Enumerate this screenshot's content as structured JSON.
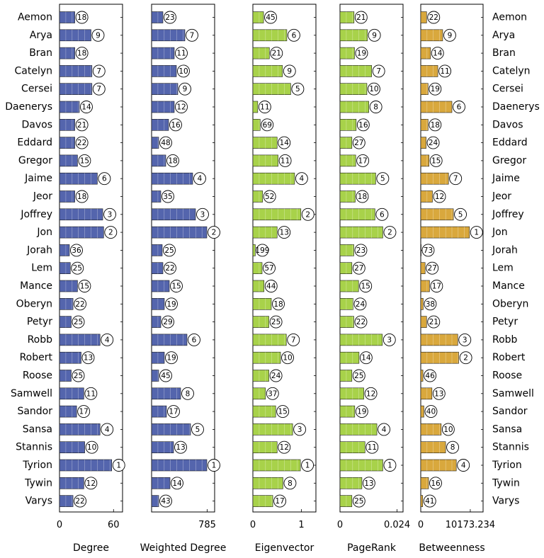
{
  "chart_data": {
    "type": "bar",
    "orientation": "horizontal",
    "categories": [
      "Aemon",
      "Arya",
      "Bran",
      "Catelyn",
      "Cersei",
      "Daenerys",
      "Davos",
      "Eddard",
      "Gregor",
      "Jaime",
      "Jeor",
      "Joffrey",
      "Jon",
      "Jorah",
      "Lem",
      "Mance",
      "Oberyn",
      "Petyr",
      "Robb",
      "Robert",
      "Roose",
      "Samwell",
      "Sandor",
      "Sansa",
      "Stannis",
      "Tyrion",
      "Tywin",
      "Varys"
    ],
    "colors": {
      "blue": "#5465ad",
      "green": "#a8d24a",
      "gold": "#d9a83d",
      "border": "#000000"
    },
    "series": [
      {
        "name": "Degree",
        "xlabel": "Degree",
        "color": "#5465ad",
        "xlim": [
          0,
          70
        ],
        "ticks": [
          {
            "value": 0,
            "label": "0"
          },
          {
            "value": 60,
            "label": "60"
          }
        ],
        "values": [
          17,
          35,
          17,
          36,
          36,
          22,
          17,
          17,
          20,
          42,
          17,
          48,
          49,
          11,
          12,
          20,
          15,
          13,
          45,
          24,
          13,
          27,
          19,
          45,
          28,
          58,
          27,
          15
        ],
        "ranks": [
          "18",
          "9",
          "18",
          "7",
          "7",
          "14",
          "21",
          "22",
          "15",
          "6",
          "18",
          "3",
          "2",
          "36",
          "25",
          "15",
          "22",
          "25",
          "4",
          "13",
          "25",
          "11",
          "17",
          "4",
          "10",
          "1",
          "12",
          "22"
        ]
      },
      {
        "name": "Weighted Degree",
        "xlabel": "Weighted Degree",
        "color": "#5465ad",
        "xlim": [
          0,
          890
        ],
        "ticks": [
          {
            "value": 785,
            "label": "785"
          }
        ],
        "values": [
          160,
          470,
          320,
          350,
          370,
          320,
          240,
          100,
          200,
          580,
          130,
          620,
          780,
          150,
          160,
          250,
          180,
          130,
          500,
          180,
          100,
          410,
          210,
          550,
          310,
          780,
          260,
          100
        ],
        "ranks": [
          "23",
          "7",
          "11",
          "10",
          "9",
          "12",
          "16",
          "48",
          "18",
          "4",
          "35",
          "3",
          "2",
          "25",
          "22",
          "15",
          "19",
          "29",
          "6",
          "19",
          "45",
          "8",
          "17",
          "5",
          "13",
          "1",
          "14",
          "43"
        ]
      },
      {
        "name": "Eigenvector",
        "xlabel": "Eigenvector",
        "color": "#a8d24a",
        "xlim": [
          0,
          1.3
        ],
        "ticks": [
          {
            "value": 0,
            "label": "0"
          },
          {
            "value": 1,
            "label": "1"
          }
        ],
        "values": [
          0.22,
          0.7,
          0.34,
          0.61,
          0.78,
          0.1,
          0.15,
          0.5,
          0.52,
          0.86,
          0.2,
          0.99,
          0.5,
          0.05,
          0.19,
          0.23,
          0.38,
          0.33,
          0.69,
          0.57,
          0.33,
          0.26,
          0.47,
          0.82,
          0.5,
          0.98,
          0.62,
          0.41
        ],
        "ranks": [
          "45",
          "6",
          "21",
          "9",
          "5",
          "11",
          "69",
          "14",
          "11",
          "4",
          "52",
          "2",
          "13",
          "199",
          "57",
          "44",
          "18",
          "25",
          "7",
          "10",
          "24",
          "37",
          "15",
          "3",
          "12",
          "1",
          "8",
          "17"
        ]
      },
      {
        "name": "PageRank",
        "xlabel": "PageRank",
        "color": "#a8d24a",
        "xlim": [
          0,
          0.0265
        ],
        "ticks": [
          {
            "value": 0,
            "label": "0"
          },
          {
            "value": 0.024,
            "label": "0.024"
          }
        ],
        "values": [
          0.0059,
          0.0115,
          0.0061,
          0.0133,
          0.0113,
          0.0121,
          0.0068,
          0.005,
          0.0066,
          0.015,
          0.0064,
          0.0147,
          0.018,
          0.0058,
          0.005,
          0.0078,
          0.0055,
          0.0058,
          0.0178,
          0.008,
          0.005,
          0.01,
          0.0062,
          0.0155,
          0.0105,
          0.018,
          0.0092,
          0.005
        ],
        "ranks": [
          "21",
          "9",
          "19",
          "7",
          "10",
          "8",
          "16",
          "27",
          "17",
          "5",
          "18",
          "6",
          "2",
          "23",
          "27",
          "15",
          "24",
          "22",
          "3",
          "14",
          "25",
          "12",
          "19",
          "4",
          "11",
          "1",
          "13",
          "25"
        ]
      },
      {
        "name": "Betweenness",
        "xlabel": "Betweenness",
        "color": "#d9a83d",
        "xlim": [
          0,
          12800
        ],
        "ticks": [
          {
            "value": 0,
            "label": "0"
          },
          {
            "value": 10173.234,
            "label": "10173.234"
          }
        ],
        "values": [
          1200,
          4500,
          2000,
          3500,
          1500,
          6400,
          1500,
          1100,
          1700,
          5700,
          2400,
          6700,
          10000,
          70,
          900,
          1800,
          500,
          1200,
          7600,
          7800,
          450,
          2300,
          650,
          4200,
          5100,
          7300,
          1600,
          400
        ],
        "ranks": [
          "22",
          "9",
          "14",
          "11",
          "19",
          "6",
          "18",
          "24",
          "15",
          "7",
          "12",
          "5",
          "1",
          "73",
          "27",
          "17",
          "38",
          "21",
          "3",
          "2",
          "46",
          "13",
          "40",
          "10",
          "8",
          "4",
          "16",
          "41"
        ]
      }
    ]
  }
}
